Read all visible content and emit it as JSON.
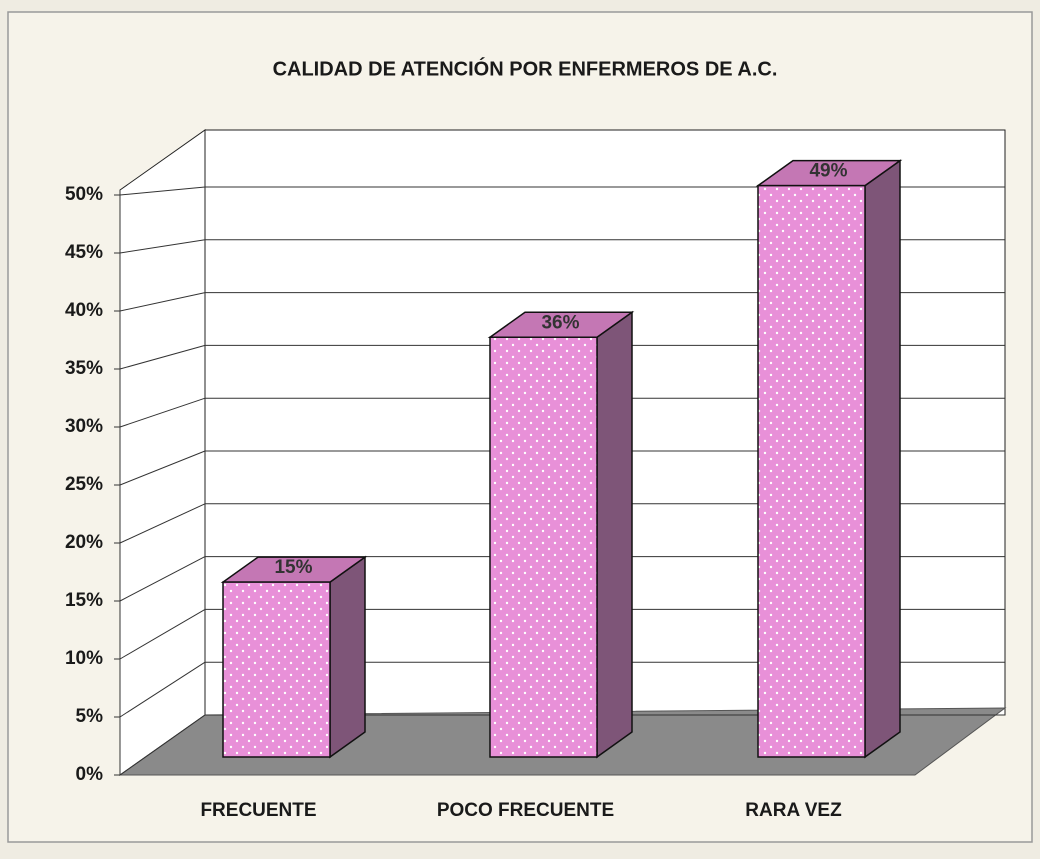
{
  "chart_data": {
    "type": "bar3d",
    "title": "CALIDAD DE ATENCIÓN POR ENFERMEROS DE A.C.",
    "categories": [
      "FRECUENTE",
      "POCO FRECUENTE",
      "RARA VEZ"
    ],
    "values": [
      15,
      36,
      49
    ],
    "value_labels": [
      "15%",
      "36%",
      "49%"
    ],
    "color": "#e890d8",
    "ylim": [
      0,
      50
    ],
    "yticks": [
      {
        "value": 0,
        "label": "0%"
      },
      {
        "value": 5,
        "label": "5%"
      },
      {
        "value": 10,
        "label": "10%"
      },
      {
        "value": 15,
        "label": "15%"
      },
      {
        "value": 20,
        "label": "20%"
      },
      {
        "value": 25,
        "label": "25%"
      },
      {
        "value": 30,
        "label": "30%"
      },
      {
        "value": 35,
        "label": "35%"
      },
      {
        "value": 40,
        "label": "40%"
      },
      {
        "value": 45,
        "label": "45%"
      },
      {
        "value": 50,
        "label": "50%"
      }
    ],
    "grid": true
  }
}
